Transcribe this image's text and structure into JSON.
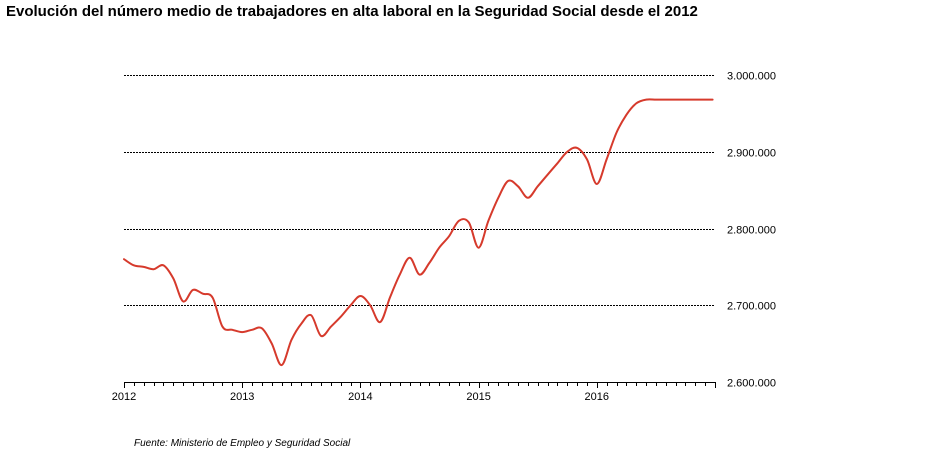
{
  "title": "Evolución del número medio de trabajadores en alta laboral en la Seguridad Social desde el 2012",
  "source": "Fuente: Ministerio de Empleo y Seguridad Social",
  "chart_data": {
    "type": "line",
    "title": "Evolución del número medio de trabajadores en alta laboral en la Seguridad Social desde el 2012",
    "xlabel": "",
    "ylabel": "",
    "xlim": [
      2012,
      2017
    ],
    "ylim": [
      2600000,
      3000000
    ],
    "x_ticks": [
      2012,
      2013,
      2014,
      2015,
      2016
    ],
    "x_tick_labels": [
      "2012",
      "2013",
      "2014",
      "2015",
      "2016"
    ],
    "y_ticks": [
      2600000,
      2700000,
      2800000,
      2900000,
      3000000
    ],
    "y_tick_labels": [
      "2.600.000",
      "2.700.000",
      "2.800.000",
      "2.900.000",
      "3.000.000"
    ],
    "grid": "horizontal dashed",
    "line_color": "#d63a2c",
    "series": [
      {
        "x": [
          2012.0,
          2012.083,
          2012.167,
          2012.25,
          2012.333,
          2012.417,
          2012.5,
          2012.583,
          2012.667,
          2012.75,
          2012.833,
          2012.917,
          2013.0,
          2013.083,
          2013.167,
          2013.25,
          2013.333,
          2013.417,
          2013.5,
          2013.583,
          2013.667,
          2013.75,
          2013.833,
          2013.917,
          2014.0,
          2014.083,
          2014.167,
          2014.25,
          2014.333,
          2014.417,
          2014.5,
          2014.583,
          2014.667,
          2014.75,
          2014.833,
          2014.917,
          2015.0,
          2015.083,
          2015.167,
          2015.25,
          2015.333,
          2015.417,
          2015.5,
          2015.583,
          2015.667,
          2015.75,
          2015.833,
          2015.917,
          2016.0,
          2016.083,
          2016.167,
          2016.25,
          2016.333,
          2016.417,
          2016.5,
          2016.583,
          2016.667,
          2016.75,
          2016.833,
          2016.917,
          2016.98
        ],
        "values": [
          2760000,
          2752000,
          2750000,
          2747000,
          2752000,
          2735000,
          2705000,
          2720000,
          2715000,
          2710000,
          2672000,
          2668000,
          2665000,
          2668000,
          2670000,
          2650000,
          2622000,
          2655000,
          2676000,
          2687000,
          2660000,
          2672000,
          2685000,
          2700000,
          2712000,
          2700000,
          2678000,
          2710000,
          2740000,
          2762000,
          2740000,
          2755000,
          2775000,
          2790000,
          2810000,
          2808000,
          2775000,
          2810000,
          2840000,
          2862000,
          2855000,
          2840000,
          2855000,
          2870000,
          2885000,
          2900000,
          2905000,
          2890000,
          2858000,
          2890000,
          2925000,
          2948000,
          2963000,
          2968000,
          2968000,
          2968000,
          2968000,
          2968000,
          2968000,
          2968000,
          2968000
        ]
      }
    ]
  }
}
